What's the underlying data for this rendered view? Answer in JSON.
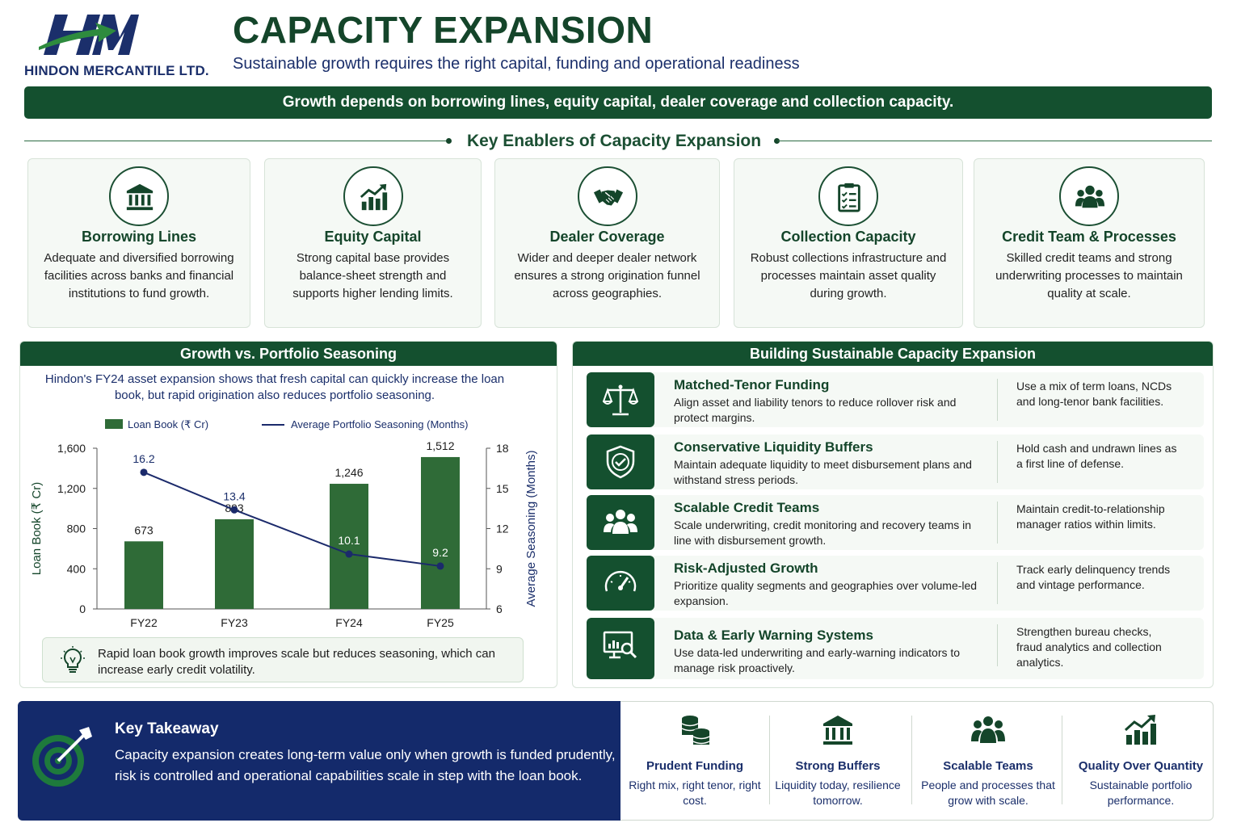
{
  "header": {
    "company": "HINDON MERCANTILE LTD.",
    "title": "CAPACITY EXPANSION",
    "subtitle": "Sustainable growth requires the right capital, funding and operational readiness",
    "banner": "Growth depends on borrowing lines, equity capital, dealer coverage and collection capacity."
  },
  "enablers": {
    "title": "Key Enablers of Capacity Expansion",
    "cards": [
      {
        "icon": "bank-icon",
        "title": "Borrowing Lines",
        "desc": "Adequate and diversified borrowing facilities across banks and financial institutions to fund growth."
      },
      {
        "icon": "growth-chart-icon",
        "title": "Equity Capital",
        "desc": "Strong capital base provides balance-sheet strength and supports higher lending limits."
      },
      {
        "icon": "handshake-icon",
        "title": "Dealer Coverage",
        "desc": "Wider and deeper dealer network ensures a strong origination funnel across geographies."
      },
      {
        "icon": "clipboard-icon",
        "title": "Collection Capacity",
        "desc": "Robust collections infrastructure and processes maintain asset quality during growth."
      },
      {
        "icon": "team-icon",
        "title": "Credit Team & Processes",
        "desc": "Skilled credit teams and strong underwriting processes to maintain quality at scale."
      }
    ]
  },
  "growth_panel": {
    "title": "Growth vs. Portfolio Seasoning",
    "intro": "Hindon's FY24 asset expansion shows that fresh capital can quickly increase the loan book, but rapid origination also reduces portfolio seasoning.",
    "note": "Rapid loan book growth improves scale but reduces seasoning, which can increase early credit volatility."
  },
  "chart_data": {
    "type": "bar",
    "categories": [
      "FY22",
      "FY23",
      "FY24",
      "FY25"
    ],
    "series": [
      {
        "name": "Loan Book (₹ Cr)",
        "type": "bar",
        "axis": "left",
        "values": [
          673,
          893,
          1246,
          1512
        ]
      },
      {
        "name": "Average Portfolio Seasoning (Months)",
        "type": "line",
        "axis": "right",
        "values": [
          16.2,
          13.4,
          10.1,
          9.2
        ]
      }
    ],
    "ylabel": "Loan Book (₹ Cr)",
    "ylabel_right": "Average Seasoning (Months)",
    "ylim": [
      0,
      1600
    ],
    "yticks": [
      "0",
      "400",
      "800",
      "1,200",
      "1,600"
    ],
    "ylim_right": [
      6,
      18
    ],
    "yticks_right": [
      "6",
      "9",
      "12",
      "15",
      "18"
    ],
    "bar_labels": [
      "673",
      "893",
      "1,246",
      "1,512"
    ],
    "line_labels": [
      "16.2",
      "13.4",
      "10.1",
      "9.2"
    ],
    "colors": {
      "bar": "#2f6b37",
      "line": "#1b2a6b"
    },
    "grid": false,
    "legend": "top"
  },
  "building": {
    "title": "Building Sustainable Capacity Expansion",
    "rows": [
      {
        "icon": "scale-icon",
        "title": "Matched-Tenor Funding",
        "desc": "Align asset and liability tenors to reduce rollover risk and protect margins.",
        "note": "Use a mix of term loans, NCDs and long-tenor bank facilities."
      },
      {
        "icon": "shield-check-icon",
        "title": "Conservative Liquidity Buffers",
        "desc": "Maintain adequate liquidity to meet disbursement plans and withstand stress periods.",
        "note": "Hold cash and undrawn lines as a first line of defense."
      },
      {
        "icon": "people-icon",
        "title": "Scalable Credit Teams",
        "desc": "Scale underwriting, credit monitoring and recovery teams in line with disbursement growth.",
        "note": "Maintain credit-to-relationship manager ratios within limits."
      },
      {
        "icon": "speedometer-icon",
        "title": "Risk-Adjusted Growth",
        "desc": "Prioritize quality segments and geographies over volume-led expansion.",
        "note": "Track early delinquency trends and vintage performance."
      },
      {
        "icon": "monitor-search-icon",
        "title": "Data & Early Warning Systems",
        "desc": "Use data-led underwriting and early-warning indicators to manage risk proactively.",
        "note": "Strengthen bureau checks, fraud analytics and collection analytics."
      }
    ]
  },
  "takeaway": {
    "title": "Key Takeaway",
    "text": "Capacity expansion creates long-term value only when growth is funded prudently, risk is controlled and operational capabilities scale in step with the loan book.",
    "pillars": [
      {
        "icon": "coins-icon",
        "title": "Prudent Funding",
        "desc": "Right mix, right tenor, right cost."
      },
      {
        "icon": "bank-icon",
        "title": "Strong Buffers",
        "desc": "Liquidity today, resilience tomorrow."
      },
      {
        "icon": "team-icon",
        "title": "Scalable Teams",
        "desc": "People and processes that grow with scale."
      },
      {
        "icon": "growth-chart-icon",
        "title": "Quality Over Quantity",
        "desc": "Sustainable portfolio performance."
      }
    ]
  }
}
